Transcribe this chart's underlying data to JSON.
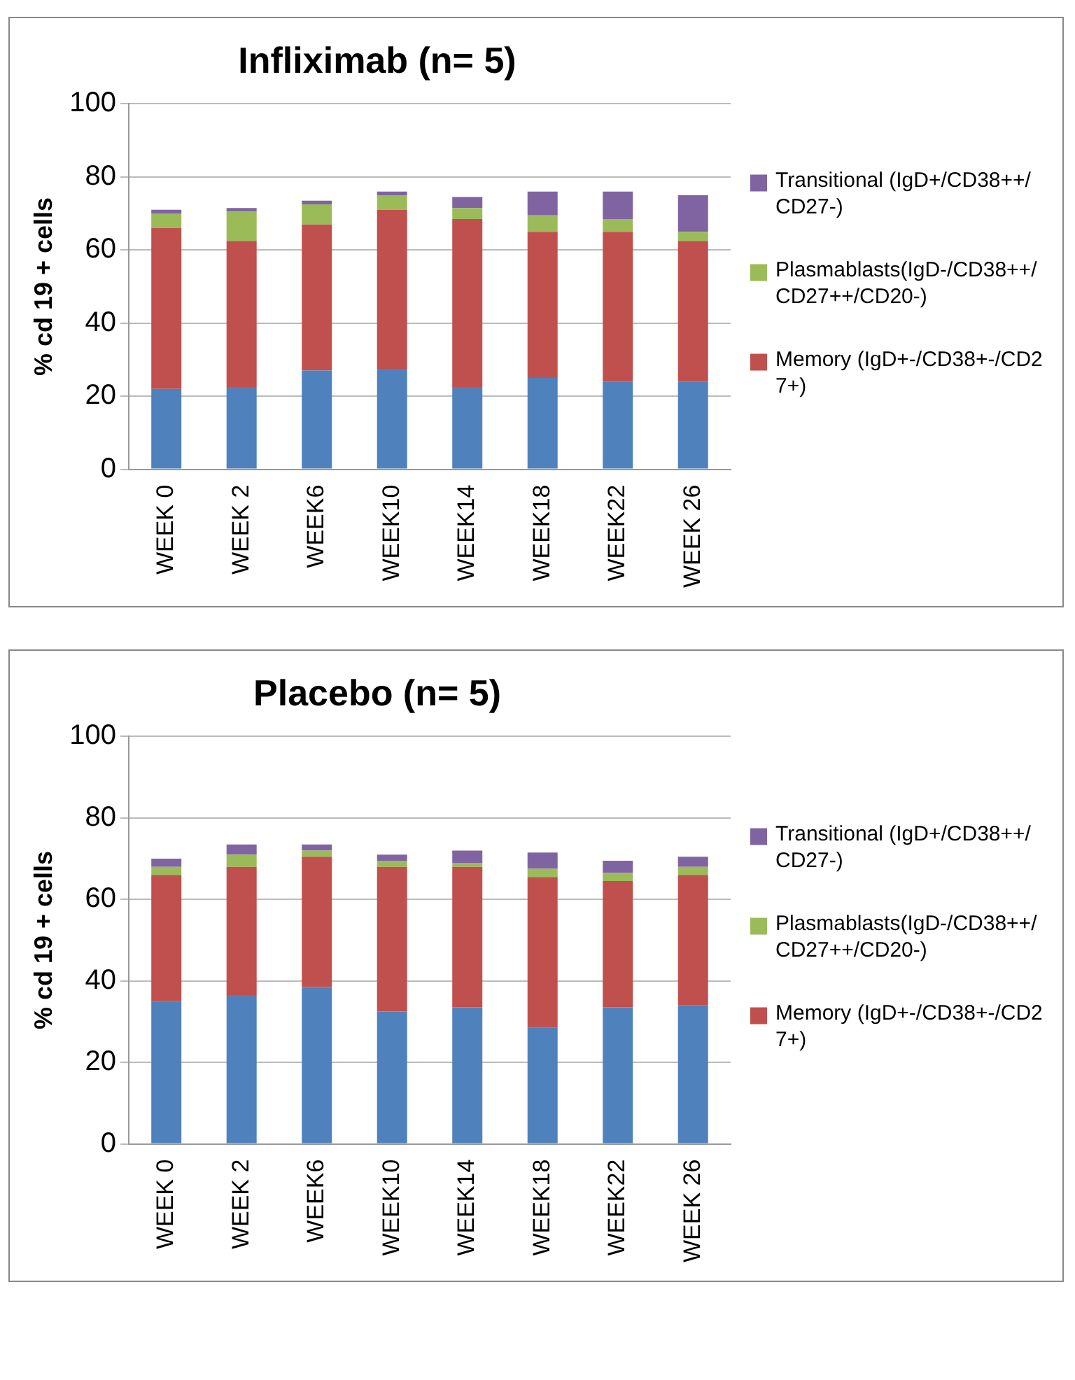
{
  "chart_data": [
    {
      "type": "bar",
      "stacked": true,
      "title": "Infliximab (n= 5)",
      "ylabel": "% cd 19 + cells",
      "categories": [
        "WEEK 0",
        "WEEK 2",
        "WEEK6",
        "WEEK10",
        "WEEK14",
        "WEEK18",
        "WEEK22",
        "WEEK 26"
      ],
      "ylim": [
        0,
        100
      ],
      "yticks": [
        0,
        20,
        40,
        60,
        80,
        100
      ],
      "grid": "y",
      "legend": "right",
      "series": [
        {
          "color": "#4f81bd",
          "values": [
            22,
            22.5,
            27,
            27.5,
            22.5,
            25,
            24,
            24
          ]
        },
        {
          "name": "Memory (IgD+-/CD38+-/CD27+)",
          "color": "#c0504d",
          "values": [
            44,
            40,
            40,
            43.5,
            46,
            40,
            41,
            38.5
          ]
        },
        {
          "name": "Plasmablasts(IgD-/CD38++/CD27++/CD20-)",
          "color": "#9bbb59",
          "values": [
            4,
            8,
            5.5,
            4,
            3,
            4.5,
            3.5,
            2.5
          ]
        },
        {
          "name": "Transitional (IgD+/CD38++/CD27-)",
          "color": "#8064a2",
          "values": [
            1,
            1,
            1,
            1,
            3,
            6.5,
            7.5,
            10
          ]
        }
      ]
    },
    {
      "type": "bar",
      "stacked": true,
      "title": "Placebo (n= 5)",
      "ylabel": "% cd 19 + cells",
      "categories": [
        "WEEK 0",
        "WEEK 2",
        "WEEK6",
        "WEEK10",
        "WEEK14",
        "WEEK18",
        "WEEK22",
        "WEEK 26"
      ],
      "ylim": [
        0,
        100
      ],
      "yticks": [
        0,
        20,
        40,
        60,
        80,
        100
      ],
      "grid": "y",
      "legend": "right",
      "series": [
        {
          "color": "#4f81bd",
          "values": [
            35,
            36.5,
            38.5,
            32.5,
            33.5,
            28.5,
            33.5,
            34
          ]
        },
        {
          "name": "Memory (IgD+-/CD38+-/CD27+)",
          "color": "#c0504d",
          "values": [
            31,
            31.5,
            32,
            35.5,
            34.5,
            37,
            31,
            32
          ]
        },
        {
          "name": "Plasmablasts(IgD-/CD38++/CD27++/CD20-)",
          "color": "#9bbb59",
          "values": [
            2,
            3,
            1.5,
            1.5,
            1,
            2,
            2,
            2
          ]
        },
        {
          "name": "Transitional (IgD+/CD38++/CD27-)",
          "color": "#8064a2",
          "values": [
            2,
            2.5,
            1.5,
            1.5,
            3,
            4,
            3,
            2.5
          ]
        }
      ]
    }
  ]
}
